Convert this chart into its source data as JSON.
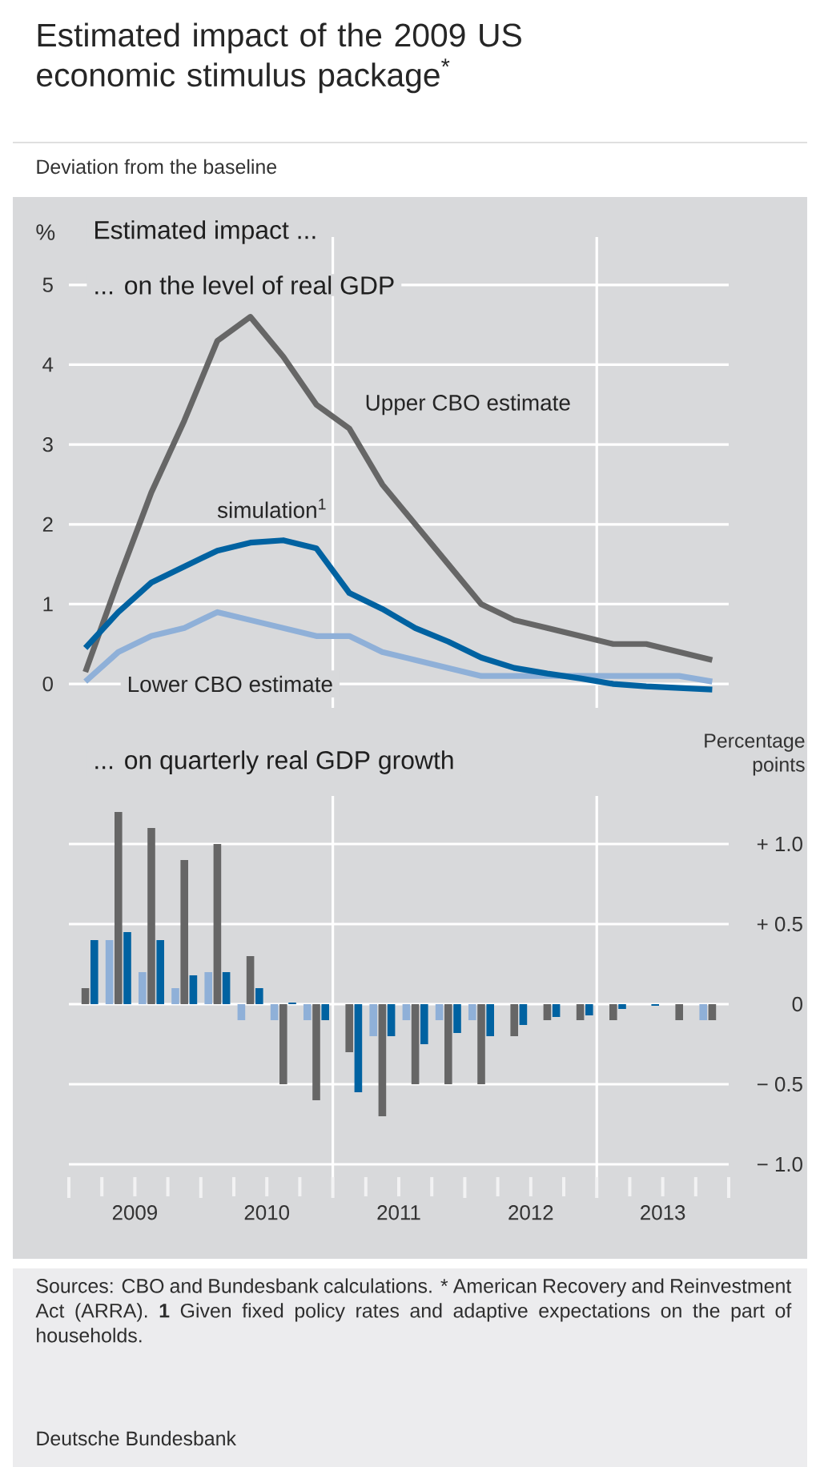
{
  "chart_data": [
    {
      "type": "line",
      "title": "Estimated impact of the 2009 US economic stimulus package$^{*}$",
      "subtitle": "Deviation from the baseline",
      "ylabel": "%",
      "annotations": [
        "Estimated impact ...",
        "... on the level of real GDP"
      ],
      "x": [
        2009.125,
        2009.375,
        2009.625,
        2009.875,
        2010.125,
        2010.375,
        2010.625,
        2010.875,
        2011.125,
        2011.375,
        2011.625,
        2011.875,
        2012.125,
        2012.375,
        2012.625,
        2012.875,
        2013.125,
        2013.375,
        2013.625,
        2013.875
      ],
      "xlim": [
        2009,
        2014
      ],
      "ylim": [
        -0.3,
        5.6
      ],
      "yticks": [
        0,
        1,
        2,
        3,
        4,
        5
      ],
      "grid": "y",
      "tick_labels": "y",
      "marker": "none",
      "line_style": "solid",
      "ref_lines": [
        {
          "axis": "x",
          "value": 2011,
          "color": "#ffffff"
        },
        {
          "axis": "x",
          "value": 2013,
          "color": "#ffffff"
        }
      ],
      "series": [
        {
          "name": "Lower CBO estimate",
          "color": "#8fb0d8",
          "values": [
            0.03,
            0.4,
            0.6,
            0.7,
            0.9,
            0.8,
            0.7,
            0.6,
            0.6,
            0.4,
            0.3,
            0.2,
            0.1,
            0.1,
            0.1,
            0.1,
            0.1,
            0.1,
            0.1,
            0.03
          ]
        },
        {
          "name": "Upper CBO estimate",
          "color": "#666666",
          "values": [
            0.15,
            1.3,
            2.4,
            3.3,
            4.3,
            4.6,
            4.1,
            3.5,
            3.2,
            2.5,
            2.0,
            1.5,
            1.0,
            0.8,
            0.7,
            0.6,
            0.5,
            0.5,
            0.4,
            0.3
          ]
        },
        {
          "name": "simulation$^{1}$",
          "color": "#0062a1",
          "values": [
            0.45,
            0.9,
            1.27,
            1.47,
            1.67,
            1.77,
            1.8,
            1.7,
            1.14,
            0.94,
            0.7,
            0.53,
            0.33,
            0.2,
            0.13,
            0.07,
            0.0,
            -0.03,
            -0.05,
            -0.07
          ]
        }
      ]
    },
    {
      "type": "bar",
      "title": "... on quarterly real GDP growth",
      "ylabel": "Percentage points",
      "annotations": [
        "Sources: CBO and Bundesbank calculations.",
        "* American Recovery and Reinvestment Act (ARRA).",
        "**1** Given fixed policy rates and adaptive expectations on the part of households.",
        "Deutsche Bundesbank"
      ],
      "x": [
        2009.125,
        2009.375,
        2009.625,
        2009.875,
        2010.125,
        2010.375,
        2010.625,
        2010.875,
        2011.125,
        2011.375,
        2011.625,
        2011.875,
        2012.125,
        2012.375,
        2012.625,
        2012.875,
        2013.125,
        2013.375,
        2013.625,
        2013.875
      ],
      "xlim": [
        2009,
        2014
      ],
      "xticks": [
        {
          "value": 2009,
          "label": null
        },
        {
          "value": 2009.25,
          "label": null
        },
        {
          "value": 2009.5,
          "label": "2009"
        },
        {
          "value": 2009.75,
          "label": null
        },
        {
          "value": 2010,
          "label": null
        },
        {
          "value": 2010.25,
          "label": null
        },
        {
          "value": 2010.5,
          "label": "2010"
        },
        {
          "value": 2010.75,
          "label": null
        },
        {
          "value": 2011,
          "label": null
        },
        {
          "value": 2011.25,
          "label": null
        },
        {
          "value": 2011.5,
          "label": "2011"
        },
        {
          "value": 2011.75,
          "label": null
        },
        {
          "value": 2012,
          "label": null
        },
        {
          "value": 2012.25,
          "label": null
        },
        {
          "value": 2012.5,
          "label": "2012"
        },
        {
          "value": 2012.75,
          "label": null
        },
        {
          "value": 2013,
          "label": null
        },
        {
          "value": 2013.25,
          "label": null
        },
        {
          "value": 2013.5,
          "label": "2013"
        },
        {
          "value": 2013.75,
          "label": null
        },
        {
          "value": 2014,
          "label": null
        }
      ],
      "ylim": [
        -1.08,
        1.3
      ],
      "yticks": [
        {
          "value": 1,
          "label": "+ 1.0"
        },
        {
          "value": 0.5,
          "label": "+ 0.5"
        },
        0,
        {
          "value": -0.5,
          "label": "− 0.5"
        },
        {
          "value": -1,
          "label": "− 1.0"
        }
      ],
      "grid": "y",
      "ref_lines": [
        {
          "axis": "x",
          "value": 2011,
          "color": "#ffffff"
        },
        {
          "axis": "x",
          "value": 2013,
          "color": "#ffffff"
        }
      ],
      "series": [
        {
          "color": "#8fb0d8",
          "values": [
            0,
            0.4,
            0.2,
            0.1,
            0.2,
            -0.1,
            -0.1,
            -0.1,
            0,
            -0.2,
            -0.1,
            -0.1,
            -0.1,
            0,
            0,
            0,
            0,
            0,
            0,
            -0.1
          ]
        },
        {
          "color": "#666666",
          "values": [
            0.1,
            1.2,
            1.1,
            0.9,
            1.0,
            0.3,
            -0.5,
            -0.6,
            -0.3,
            -0.7,
            -0.5,
            -0.5,
            -0.5,
            -0.2,
            -0.1,
            -0.1,
            -0.1,
            0,
            -0.1,
            -0.1
          ]
        },
        {
          "color": "#0062a1",
          "values": [
            0.4,
            0.45,
            0.4,
            0.18,
            0.2,
            0.1,
            0.01,
            -0.1,
            -0.55,
            -0.2,
            -0.25,
            -0.18,
            -0.2,
            -0.13,
            -0.08,
            -0.07,
            -0.03,
            -0.01,
            0,
            0
          ]
        }
      ]
    }
  ]
}
